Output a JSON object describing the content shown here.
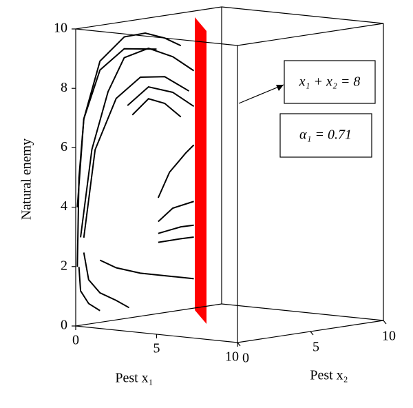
{
  "chart_data": {
    "type": "phase-3d",
    "xlabel": "Pest x₁",
    "x2label": "Pest x₂",
    "zlabel": "Natural enemy",
    "xlim": [
      0,
      10
    ],
    "x2lim": [
      0,
      10
    ],
    "zlim": [
      0,
      10
    ],
    "xticks": [
      0,
      5,
      10
    ],
    "x2ticks": [
      0,
      5,
      10
    ],
    "zticks": [
      0,
      2,
      4,
      6,
      8,
      10
    ],
    "annotations": [
      "x₁ + x₂ = 8",
      "α₁ = 0.71"
    ],
    "series": [
      {
        "color": "#000000",
        "x": [
          0.1,
          0.5,
          1.5,
          3,
          4.3,
          5.5,
          6.5
        ],
        "values": [
          4,
          7,
          9,
          9.9,
          10.1,
          10,
          9.8
        ]
      },
      {
        "color": "#000000",
        "x": [
          0.3,
          1,
          2,
          3,
          4.5,
          6,
          7.3
        ],
        "values": [
          3,
          6,
          8,
          9.2,
          9.6,
          9.4,
          9
        ]
      },
      {
        "color": "#000000",
        "x": [
          0.5,
          1.2,
          2.5,
          4,
          5.5,
          7
        ],
        "values": [
          3,
          6,
          7.8,
          8.6,
          8.7,
          8.3
        ]
      },
      {
        "color": "#000000",
        "x": [
          0.1,
          0.2,
          0.5,
          1.5,
          3,
          5
        ],
        "values": [
          2,
          5,
          7,
          8.7,
          9.5,
          9.6
        ]
      },
      {
        "color": "#000000",
        "x": [
          3.2,
          4.5,
          6,
          7.3
        ],
        "values": [
          7.6,
          8.3,
          8.2,
          7.8
        ]
      },
      {
        "color": "#000000",
        "x": [
          3.5,
          4.5,
          5.5,
          6.5
        ],
        "values": [
          7.3,
          7.9,
          7.8,
          7.4
        ]
      },
      {
        "color": "#000000",
        "x": [
          5.1,
          5.8,
          6.8,
          7.3
        ],
        "values": [
          4.6,
          5.5,
          6.2,
          6.5
        ]
      },
      {
        "color": "#000000",
        "x": [
          5.1,
          6,
          7.3
        ],
        "values": [
          3.8,
          4.3,
          4.6
        ]
      },
      {
        "color": "#000000",
        "x": [
          5.1,
          6.5,
          7.3
        ],
        "values": [
          3.4,
          3.7,
          3.8
        ]
      },
      {
        "color": "#000000",
        "x": [
          5.1,
          6.5,
          7.3
        ],
        "values": [
          3.1,
          3.3,
          3.4
        ]
      },
      {
        "color": "#000000",
        "x": [
          1.5,
          2.5,
          4,
          6,
          7.3
        ],
        "values": [
          2.3,
          2.1,
          2.0,
          2.0,
          2.0
        ]
      },
      {
        "color": "#000000",
        "x": [
          0.5,
          0.8,
          1.5,
          2.5,
          3.3
        ],
        "values": [
          2.5,
          1.6,
          1.2,
          1.0,
          0.8
        ]
      },
      {
        "color": "#000000",
        "x": [
          0.2,
          0.3,
          0.8,
          1.5
        ],
        "values": [
          2,
          1.2,
          0.8,
          0.6
        ]
      }
    ]
  }
}
